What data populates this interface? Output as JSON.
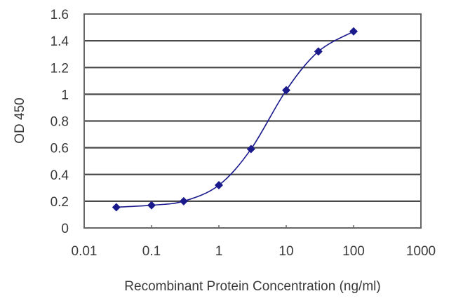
{
  "chart_data": {
    "type": "line",
    "title": "",
    "xlabel": "Recombinant Protein Concentration (ng/ml)",
    "ylabel": "OD 450",
    "xscale": "log",
    "xlim": [
      0.01,
      1000
    ],
    "ylim": [
      0,
      1.6
    ],
    "grid": {
      "horizontal": true,
      "vertical": false
    },
    "legend": null,
    "x_tick_labels": [
      "0.01",
      "0.1",
      "1",
      "10",
      "100",
      "1000"
    ],
    "y_tick_labels": [
      "0",
      "0.2",
      "0.4",
      "0.6",
      "0.8",
      "1",
      "1.2",
      "1.4",
      "1.6"
    ],
    "series": [
      {
        "name": "OD 450",
        "marker": "diamond",
        "line": "smooth",
        "color": "#1a1a8c",
        "x": [
          0.03,
          0.1,
          0.3,
          1,
          3,
          10,
          30,
          100
        ],
        "values": [
          0.155,
          0.17,
          0.2,
          0.32,
          0.59,
          1.03,
          1.32,
          1.47
        ]
      }
    ]
  },
  "colors": {
    "gridline": "#4a4a4a",
    "axis": "#555555",
    "series": "#1a1a8c",
    "background": "#ffffff"
  }
}
